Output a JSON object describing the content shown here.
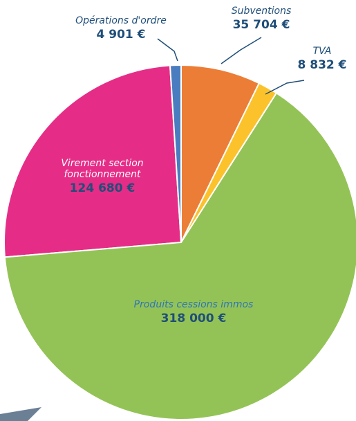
{
  "chart_data": {
    "type": "pie",
    "categories": [
      "Opérations d'ordre",
      "Subventions",
      "TVA",
      "Produits cessions immos",
      "Virement section fonctionnement"
    ],
    "values": [
      4901,
      35704,
      8832,
      318000,
      124680
    ],
    "value_labels": [
      "4 901 €",
      "35 704 €",
      "8 832 €",
      "318 000 €",
      "124 680 €"
    ],
    "colors": [
      "#4a7cc0",
      "#ec7d36",
      "#fcc22b",
      "#93c356",
      "#e52d87"
    ]
  }
}
